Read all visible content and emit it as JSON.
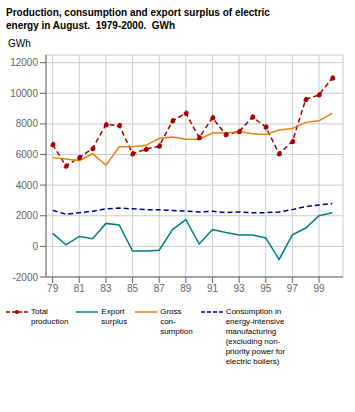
{
  "chart_data": {
    "type": "line",
    "title": "Production, consumption and export surplus of electric\nenergy in August.  1979-2000.  GWh",
    "ylabel": "GWh",
    "x": [
      79,
      80,
      81,
      82,
      83,
      84,
      85,
      86,
      87,
      88,
      89,
      90,
      91,
      92,
      93,
      94,
      95,
      96,
      97,
      98,
      99,
      100
    ],
    "series": [
      {
        "name": "Total\nproduction",
        "color": "#aa0000",
        "line_style": "dashed",
        "marker": "dot",
        "values": [
          6650,
          5250,
          5800,
          6400,
          7950,
          7900,
          6050,
          6350,
          6550,
          8200,
          8700,
          7100,
          8400,
          7300,
          7500,
          8450,
          7800,
          6050,
          6850,
          9600,
          9900,
          11000
        ]
      },
      {
        "name": "Export\nsurplus",
        "color": "#008080",
        "line_style": "solid",
        "marker": "none",
        "values": [
          850,
          100,
          650,
          500,
          1500,
          1400,
          -300,
          -300,
          -250,
          1100,
          1750,
          150,
          1100,
          900,
          750,
          750,
          550,
          -850,
          750,
          1200,
          2000,
          2200
        ]
      },
      {
        "name": "Gross\ncon-\nsumption",
        "color": "#e8820a",
        "line_style": "solid",
        "marker": "none",
        "values": [
          5800,
          5700,
          5600,
          6050,
          5300,
          6500,
          6500,
          6600,
          7050,
          7150,
          7000,
          7000,
          7400,
          7400,
          7500,
          7350,
          7300,
          7600,
          7700,
          8100,
          8200,
          8700
        ]
      },
      {
        "name": "Consumption in\nenergy-intensive\nmanufacturing\n(excluding non-\npriority power for\nelectric boilers)",
        "color": "#000099",
        "line_style": "dashed",
        "marker": "none",
        "values": [
          2350,
          2100,
          2200,
          2300,
          2450,
          2500,
          2450,
          2400,
          2400,
          2350,
          2300,
          2250,
          2300,
          2200,
          2250,
          2200,
          2200,
          2250,
          2400,
          2600,
          2700,
          2800
        ]
      }
    ],
    "xlim": [
      78.5,
      100.8
    ],
    "xticks": [
      79,
      81,
      83,
      85,
      87,
      89,
      91,
      93,
      95,
      97,
      99
    ],
    "ylim": [
      -2000,
      12500
    ],
    "yticks": [
      -2000,
      0,
      2000,
      4000,
      6000,
      8000,
      10000,
      12000
    ],
    "grid": true
  }
}
